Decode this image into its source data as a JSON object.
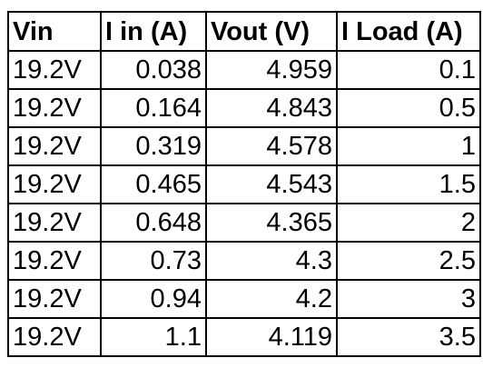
{
  "table": {
    "header": [
      "Vin",
      "I in (A)",
      "Vout (V)",
      "I Load (A)"
    ],
    "rows": [
      [
        "19.2V",
        "0.038",
        "4.959",
        "0.1"
      ],
      [
        "19.2V",
        "0.164",
        "4.843",
        "0.5"
      ],
      [
        "19.2V",
        "0.319",
        "4.578",
        "1"
      ],
      [
        "19.2V",
        "0.465",
        "4.543",
        "1.5"
      ],
      [
        "19.2V",
        "0.648",
        "4.365",
        "2"
      ],
      [
        "19.2V",
        "0.73",
        "4.3",
        "2.5"
      ],
      [
        "19.2V",
        "0.94",
        "4.2",
        "3"
      ],
      [
        "19.2V",
        "1.1",
        "4.119",
        "3.5"
      ]
    ]
  }
}
